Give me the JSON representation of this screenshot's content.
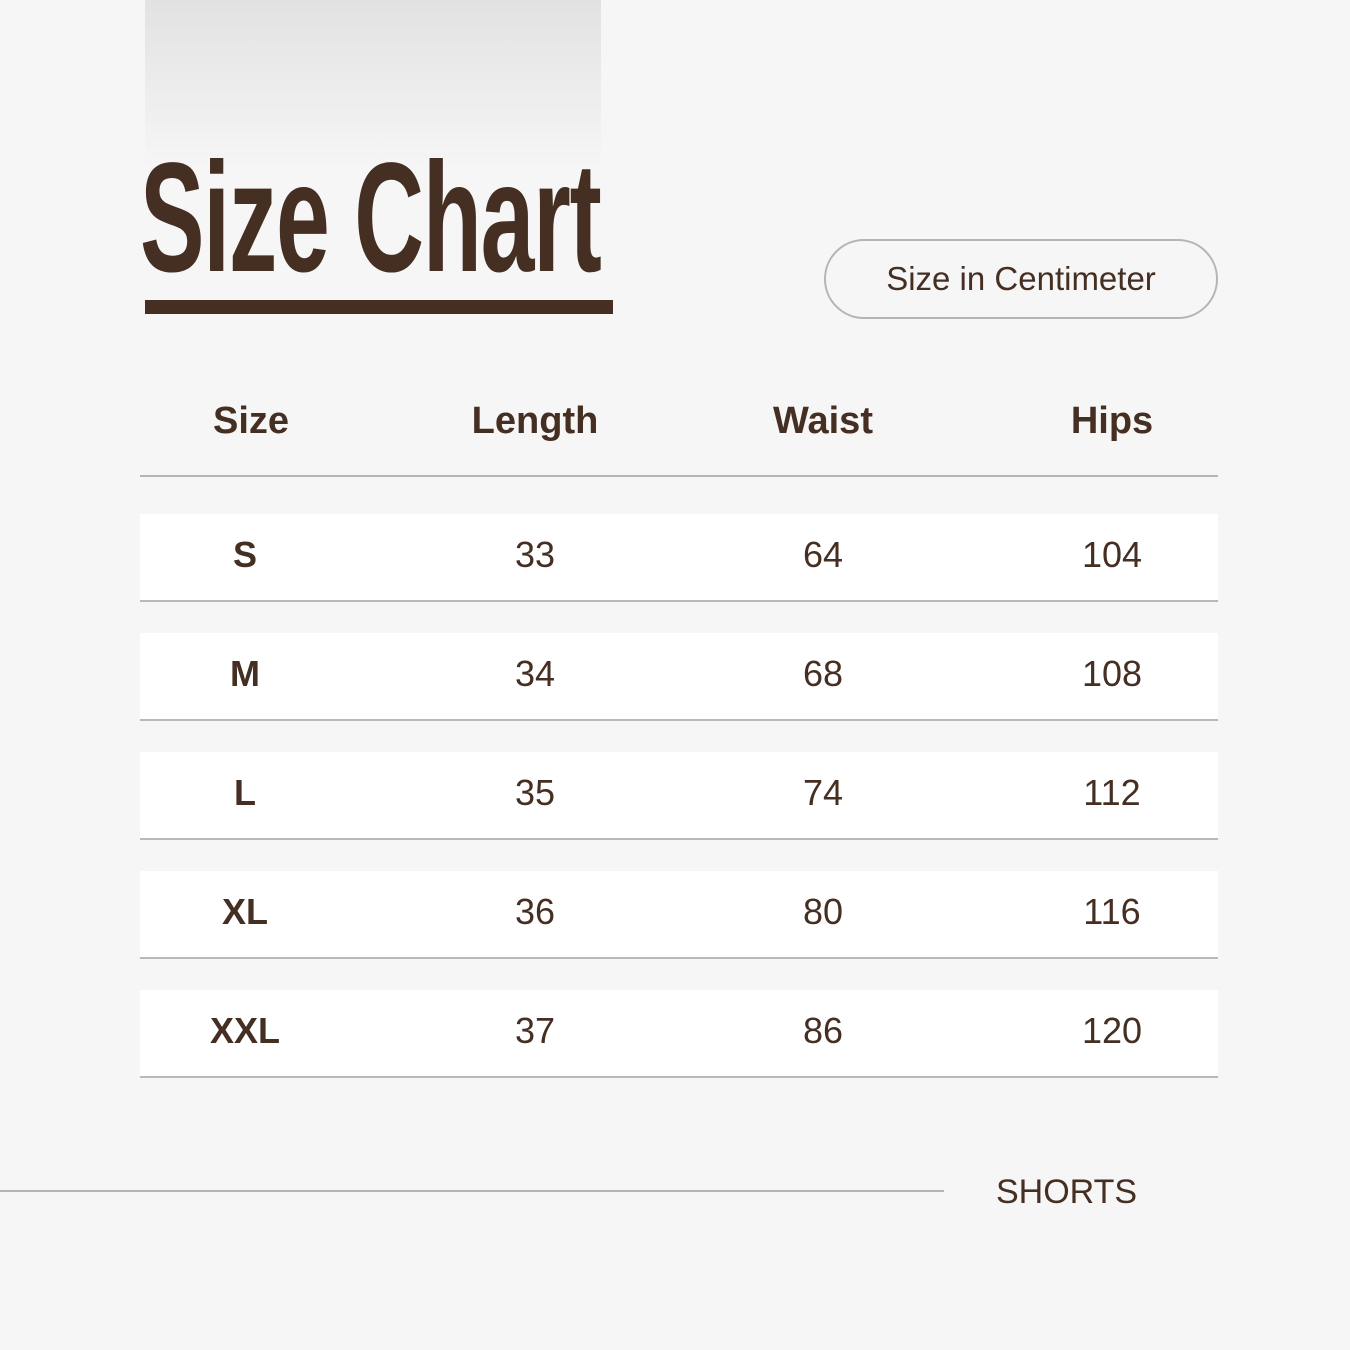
{
  "title": "Size Chart",
  "unit_label": "Size in Centimeter",
  "table": {
    "headers": [
      "Size",
      "Length",
      "Waist",
      "Hips"
    ],
    "rows": [
      [
        "S",
        "33",
        "64",
        "104"
      ],
      [
        "M",
        "34",
        "68",
        "108"
      ],
      [
        "L",
        "35",
        "74",
        "112"
      ],
      [
        "XL",
        "36",
        "80",
        "116"
      ],
      [
        "XXL",
        "37",
        "86",
        "120"
      ]
    ]
  },
  "footer": "SHORTS",
  "colors": {
    "text": "#452f22",
    "background": "#f6f6f6",
    "row": "#ffffff",
    "divider": "#b5b5b5"
  }
}
